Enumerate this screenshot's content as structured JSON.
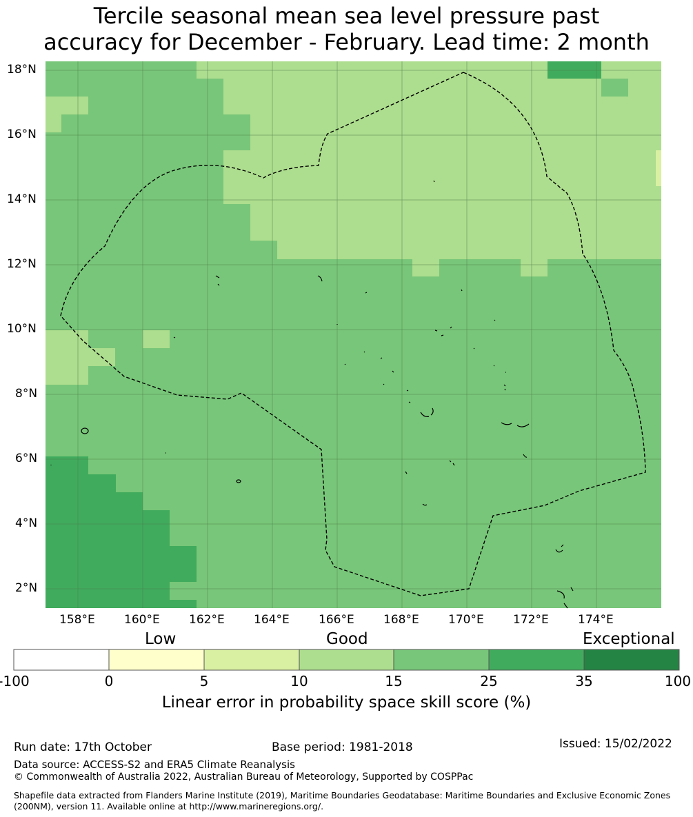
{
  "title_line1": "Tercile seasonal mean sea level pressure past",
  "title_line2": "accuracy for December - February. Lead time: 2 month",
  "map": {
    "lon_range": [
      157,
      176
    ],
    "lat_range": [
      1.4,
      18.3
    ],
    "lon_ticks": [
      "158°E",
      "160°E",
      "162°E",
      "164°E",
      "166°E",
      "168°E",
      "170°E",
      "172°E",
      "174°E"
    ],
    "lat_ticks": [
      "18°N",
      "16°N",
      "14°N",
      "12°N",
      "10°N",
      "8°N",
      "6°N",
      "4°N",
      "2°N"
    ],
    "dominant_category": "15-25",
    "boundary": "Marshall Islands exclusive economic zone (dashed)"
  },
  "colorbar": {
    "categories": [
      "Low",
      "Good",
      "Exceptional"
    ],
    "ticks": [
      "-100",
      "0",
      "5",
      "10",
      "15",
      "25",
      "35",
      "100"
    ],
    "colors": [
      "#ffffff",
      "#ffffcc",
      "#d9f0a3",
      "#addd8e",
      "#78c679",
      "#41ab5d",
      "#238443"
    ],
    "title": "Linear error in probability space skill score (%)"
  },
  "footer": {
    "run_date": "Run date: 17th October",
    "base_period": "Base period: 1981-2018",
    "issued": "Issued: 15/02/2022",
    "data_source": "Data source: ACCESS-S2 and ERA5 Climate Reanalysis",
    "copyright": "© Commonwealth of Australia 2022, Australian Bureau of Meteorology, Supported by COSPPac",
    "shapefile_note": "Shapefile data extracted from Flanders Marine Institute (2019), Maritime Boundaries Geodatabase: Maritime Boundaries and Exclusive Economic Zones (200NM), version 11. Available online at http://www.marineregions.org/."
  }
}
